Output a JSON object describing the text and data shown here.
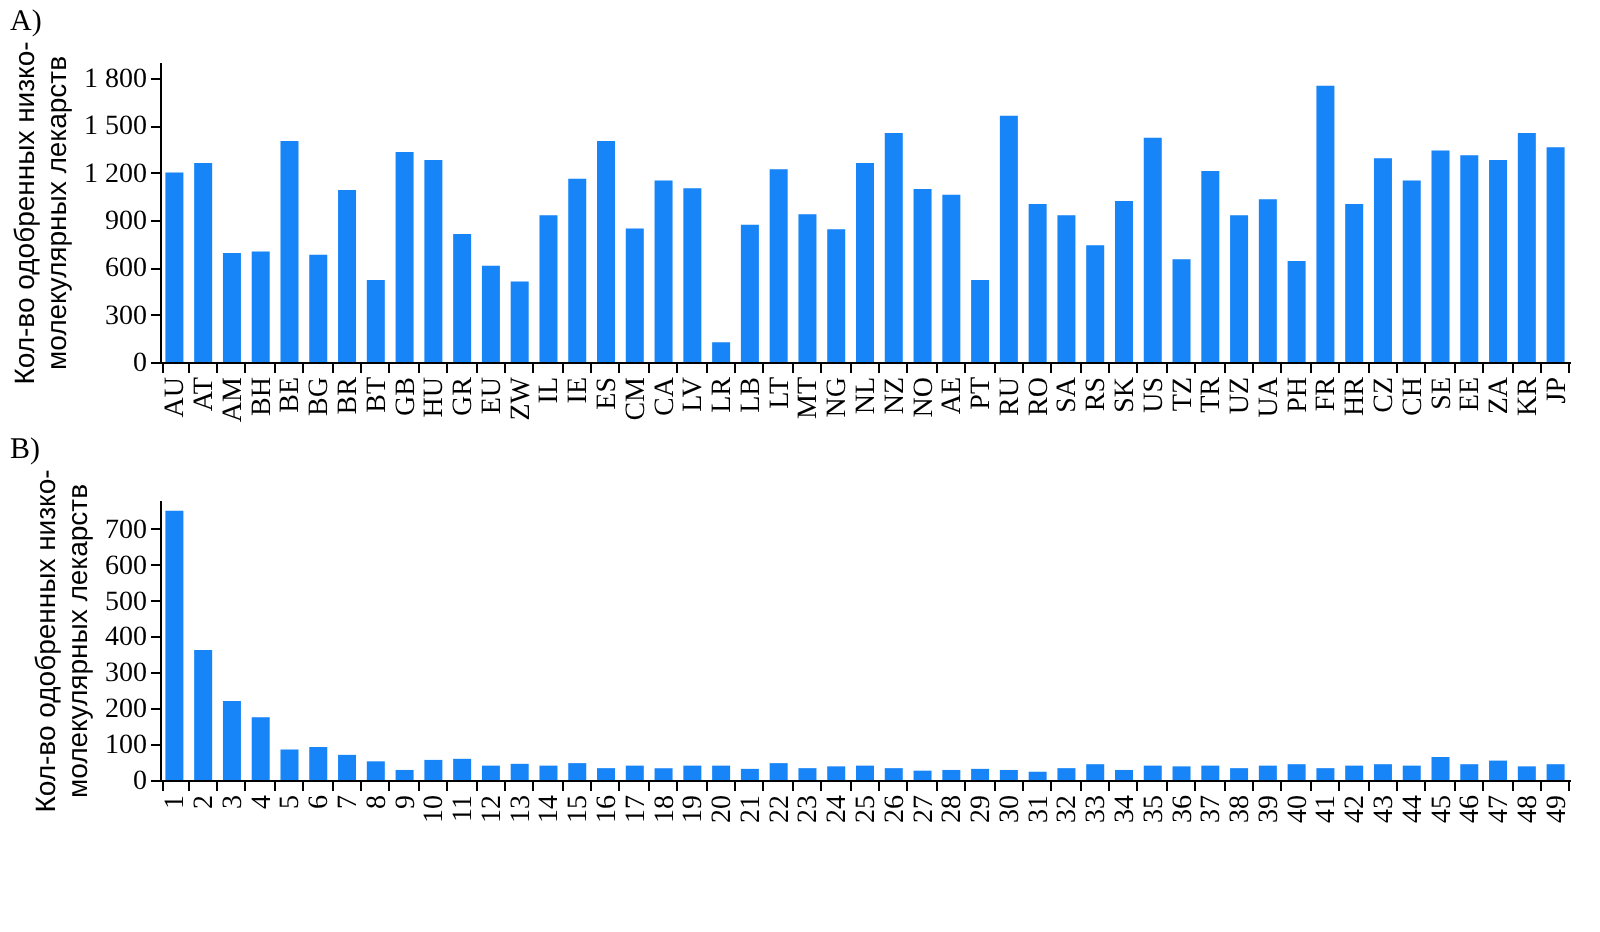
{
  "chart_data": [
    {
      "type": "bar",
      "title": "A)",
      "ylabel": "Кол-во одобренных низко-\nмолекулярных лекарств",
      "categories": [
        "AU",
        "AT",
        "AM",
        "BH",
        "BE",
        "BG",
        "BR",
        "BT",
        "GB",
        "HU",
        "GR",
        "EU",
        "ZW",
        "IL",
        "IE",
        "ES",
        "CM",
        "CA",
        "LV",
        "LR",
        "LB",
        "LT",
        "MT",
        "NG",
        "NL",
        "NZ",
        "NO",
        "AE",
        "PT",
        "RU",
        "RO",
        "SA",
        "RS",
        "SK",
        "US",
        "TZ",
        "TR",
        "UZ",
        "UA",
        "PH",
        "FR",
        "HR",
        "CZ",
        "CH",
        "SE",
        "EE",
        "ZA",
        "KR",
        "JP"
      ],
      "values": [
        1200,
        1260,
        690,
        700,
        1400,
        680,
        1090,
        520,
        1330,
        1280,
        810,
        610,
        510,
        930,
        1160,
        1400,
        845,
        1150,
        1100,
        125,
        870,
        1220,
        935,
        840,
        1260,
        1450,
        1095,
        1060,
        520,
        1560,
        1000,
        930,
        740,
        1020,
        1420,
        650,
        1210,
        930,
        1030,
        640,
        1750,
        1000,
        1290,
        1150,
        1340,
        1310,
        1280,
        1450,
        1360
      ],
      "color": "#1785f7",
      "ylim": [
        0,
        1900
      ],
      "yticks": [
        0,
        300,
        600,
        900,
        {
          "value": 1200,
          "label": "1 200"
        },
        {
          "value": 1500,
          "label": "1 500"
        },
        {
          "value": 1800,
          "label": "1 800"
        }
      ]
    },
    {
      "type": "bar",
      "title": "B)",
      "ylabel": "Кол-во одобренных низко-\nмолекулярных лекарств",
      "categories": [
        "1",
        "2",
        "3",
        "4",
        "5",
        "6",
        "7",
        "8",
        "9",
        "10",
        "11",
        "12",
        "13",
        "14",
        "15",
        "16",
        "17",
        "18",
        "19",
        "20",
        "21",
        "22",
        "23",
        "24",
        "25",
        "26",
        "27",
        "28",
        "29",
        "30",
        "31",
        "32",
        "33",
        "34",
        "35",
        "36",
        "37",
        "38",
        "39",
        "40",
        "41",
        "42",
        "43",
        "44",
        "45",
        "46",
        "47",
        "48",
        "49"
      ],
      "values": [
        750,
        362,
        220,
        175,
        85,
        92,
        70,
        52,
        28,
        56,
        59,
        40,
        45,
        40,
        47,
        33,
        40,
        33,
        40,
        40,
        31,
        47,
        33,
        38,
        40,
        33,
        26,
        28,
        31,
        28,
        23,
        33,
        44,
        28,
        40,
        38,
        40,
        33,
        40,
        44,
        33,
        40,
        44,
        40,
        64,
        44,
        54,
        38,
        44
      ],
      "color": "#1785f7",
      "ylim": [
        0,
        780
      ],
      "yticks": [
        0,
        100,
        200,
        300,
        400,
        500,
        600,
        700
      ]
    }
  ]
}
